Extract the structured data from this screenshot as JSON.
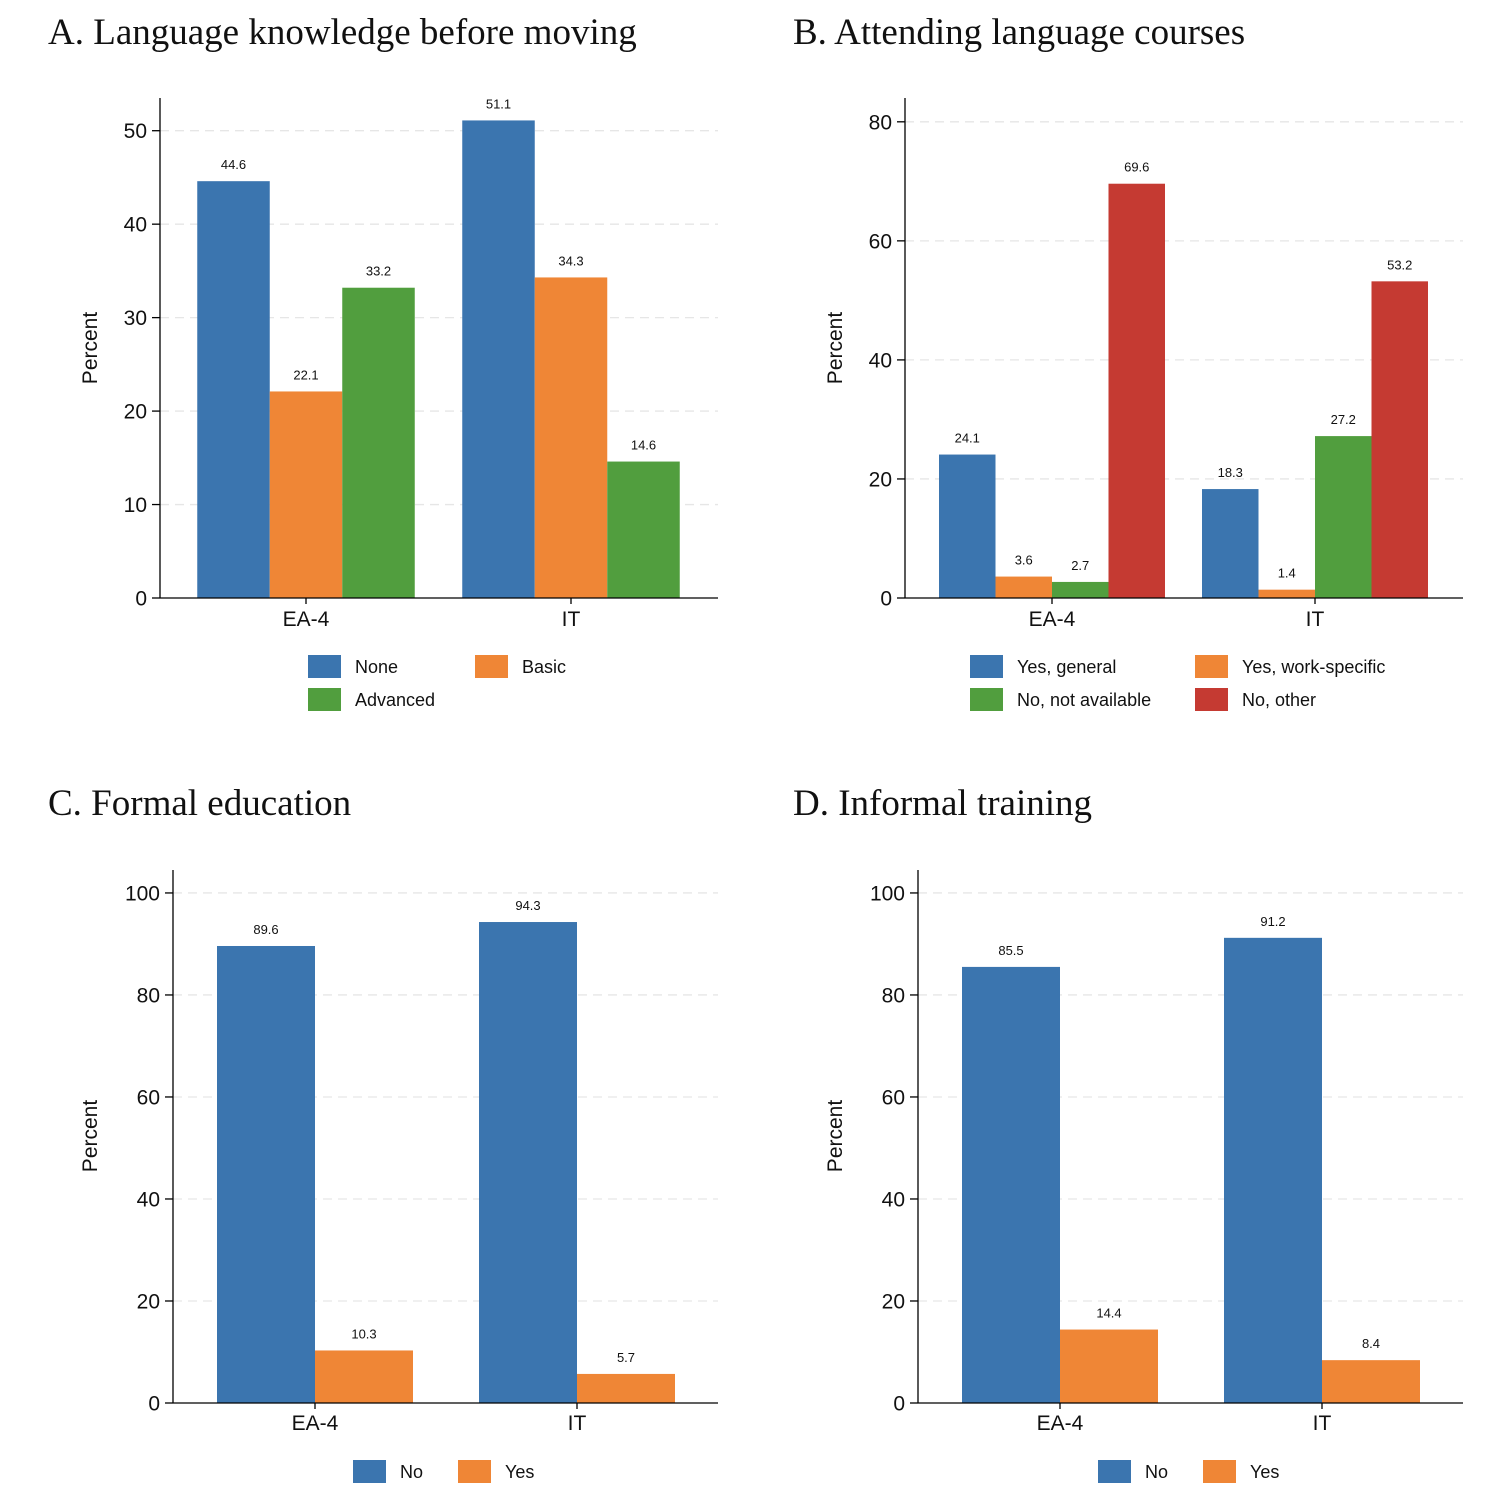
{
  "figure": {
    "panels": [
      "A",
      "B",
      "C",
      "D"
    ]
  },
  "chart_data": [
    {
      "id": "A",
      "type": "bar",
      "title": "A. Language knowledge before moving",
      "ylabel": "Percent",
      "xlabel": "",
      "ylim": [
        0,
        53.5
      ],
      "yticks": [
        0,
        10,
        20,
        30,
        40,
        50
      ],
      "grid": true,
      "categories": [
        "EA-4",
        "IT"
      ],
      "series": [
        {
          "name": "None",
          "color": "#3b75af",
          "values": [
            44.6,
            51.1
          ],
          "labels": [
            "44.6",
            "51.1"
          ]
        },
        {
          "name": "Basic",
          "color": "#ef8636",
          "values": [
            22.1,
            34.3
          ],
          "labels": [
            "22.1",
            "34.3"
          ]
        },
        {
          "name": "Advanced",
          "color": "#519e3e",
          "values": [
            33.2,
            14.6
          ],
          "labels": [
            "33.2",
            "14.6"
          ]
        }
      ],
      "legend_columns": 2
    },
    {
      "id": "B",
      "type": "bar",
      "title": "B. Attending language courses",
      "ylabel": "Percent",
      "xlabel": "",
      "ylim": [
        0,
        84
      ],
      "yticks": [
        0,
        20,
        40,
        60,
        80
      ],
      "grid": true,
      "categories": [
        "EA-4",
        "IT"
      ],
      "series": [
        {
          "name": "Yes, general",
          "color": "#3b75af",
          "values": [
            24.1,
            18.3
          ],
          "labels": [
            "24.1",
            "18.3"
          ]
        },
        {
          "name": "Yes, work-specific",
          "color": "#ef8636",
          "values": [
            3.6,
            1.4
          ],
          "labels": [
            "3.6",
            "1.4"
          ]
        },
        {
          "name": "No, not available",
          "color": "#519e3e",
          "values": [
            2.7,
            27.2
          ],
          "labels": [
            "2.7",
            "27.2"
          ]
        },
        {
          "name": "No, other",
          "color": "#c53a32",
          "values": [
            69.6,
            53.2
          ],
          "labels": [
            "69.6",
            "53.2"
          ]
        }
      ],
      "legend_columns": 2
    },
    {
      "id": "C",
      "type": "bar",
      "title": "C. Formal education",
      "ylabel": "Percent",
      "xlabel": "",
      "ylim": [
        0,
        104.5
      ],
      "yticks": [
        0,
        20,
        40,
        60,
        80,
        100
      ],
      "grid": true,
      "categories": [
        "EA-4",
        "IT"
      ],
      "series": [
        {
          "name": "No",
          "color": "#3b75af",
          "values": [
            89.6,
            94.3
          ],
          "labels": [
            "89.6",
            "94.3"
          ]
        },
        {
          "name": "Yes",
          "color": "#ef8636",
          "values": [
            10.3,
            5.7
          ],
          "labels": [
            "10.3",
            "5.7"
          ]
        }
      ],
      "legend_columns": 2
    },
    {
      "id": "D",
      "type": "bar",
      "title": "D. Informal training",
      "ylabel": "Percent",
      "xlabel": "",
      "ylim": [
        0,
        104.5
      ],
      "yticks": [
        0,
        20,
        40,
        60,
        80,
        100
      ],
      "grid": true,
      "categories": [
        "EA-4",
        "IT"
      ],
      "series": [
        {
          "name": "No",
          "color": "#3b75af",
          "values": [
            85.5,
            91.2
          ],
          "labels": [
            "85.5",
            "91.2"
          ]
        },
        {
          "name": "Yes",
          "color": "#ef8636",
          "values": [
            14.4,
            8.4
          ],
          "labels": [
            "14.4",
            "8.4"
          ]
        }
      ],
      "legend_columns": 2
    }
  ]
}
